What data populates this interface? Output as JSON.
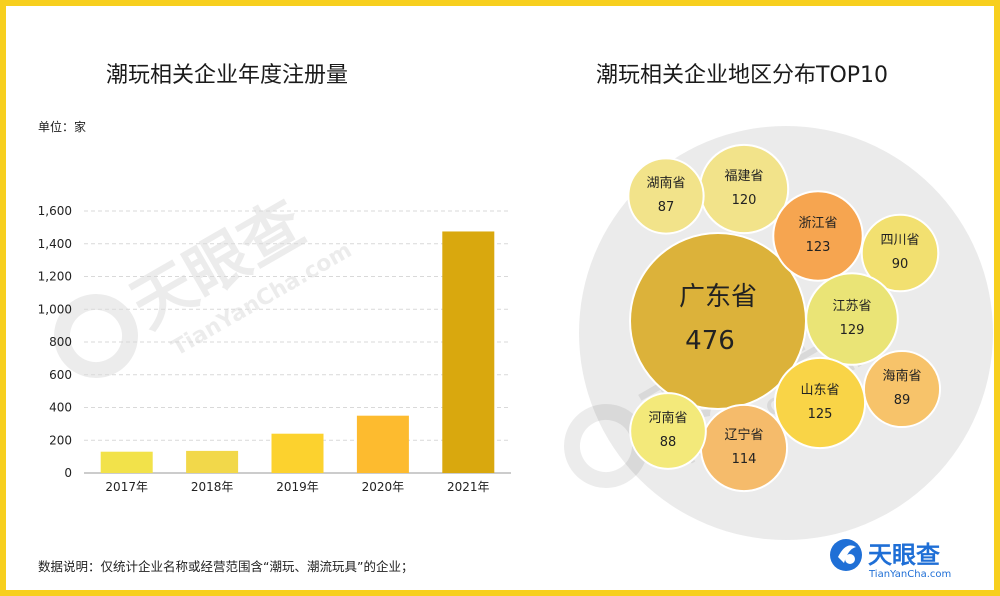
{
  "left_chart": {
    "title": "潮玩相关企业年度注册量",
    "unit": "单位：家"
  },
  "right_chart": {
    "title": "潮玩相关企业地区分布TOP10"
  },
  "footnote": "数据说明：仅统计企业名称或经营范围含“潮玩、潮流玩具”的企业；",
  "watermark": {
    "brand_cn": "天眼查",
    "brand_en": "TianYanCha.com"
  },
  "logo": {
    "brand_cn": "天眼查",
    "brand_en": "TianYanCha.com",
    "color": "#1f6fd6"
  },
  "chart_data": [
    {
      "type": "bar",
      "title": "潮玩相关企业年度注册量",
      "categories": [
        "2017年",
        "2018年",
        "2019年",
        "2020年",
        "2021年"
      ],
      "values": [
        130,
        135,
        240,
        350,
        1475
      ],
      "colors": [
        "#f2e24a",
        "#f2d84a",
        "#fcd22e",
        "#fdbb2f",
        "#d9a80e"
      ],
      "ylim": [
        0,
        1600
      ],
      "yticks": [
        "0",
        "200",
        "400",
        "600",
        "800",
        "1,000",
        "1,200",
        "1,400",
        "1,600"
      ],
      "ytick_values": [
        0,
        200,
        400,
        600,
        800,
        1000,
        1200,
        1400,
        1600
      ],
      "grid": true
    },
    {
      "type": "bubble",
      "title": "潮玩相关企业地区分布TOP10",
      "items": [
        {
          "name": "广东省",
          "value": 476,
          "color": "#dcb23a"
        },
        {
          "name": "福建省",
          "value": 120,
          "color": "#f2e38a"
        },
        {
          "name": "湖南省",
          "value": 87,
          "color": "#f2e38a"
        },
        {
          "name": "浙江省",
          "value": 123,
          "color": "#f6a550"
        },
        {
          "name": "四川省",
          "value": 90,
          "color": "#f2e070"
        },
        {
          "name": "江苏省",
          "value": 129,
          "color": "#eae476"
        },
        {
          "name": "海南省",
          "value": 89,
          "color": "#f7c36a"
        },
        {
          "name": "山东省",
          "value": 125,
          "color": "#f9d447"
        },
        {
          "name": "辽宁省",
          "value": 114,
          "color": "#f5bb6b"
        },
        {
          "name": "河南省",
          "value": 88,
          "color": "#f3e97a"
        }
      ]
    }
  ]
}
